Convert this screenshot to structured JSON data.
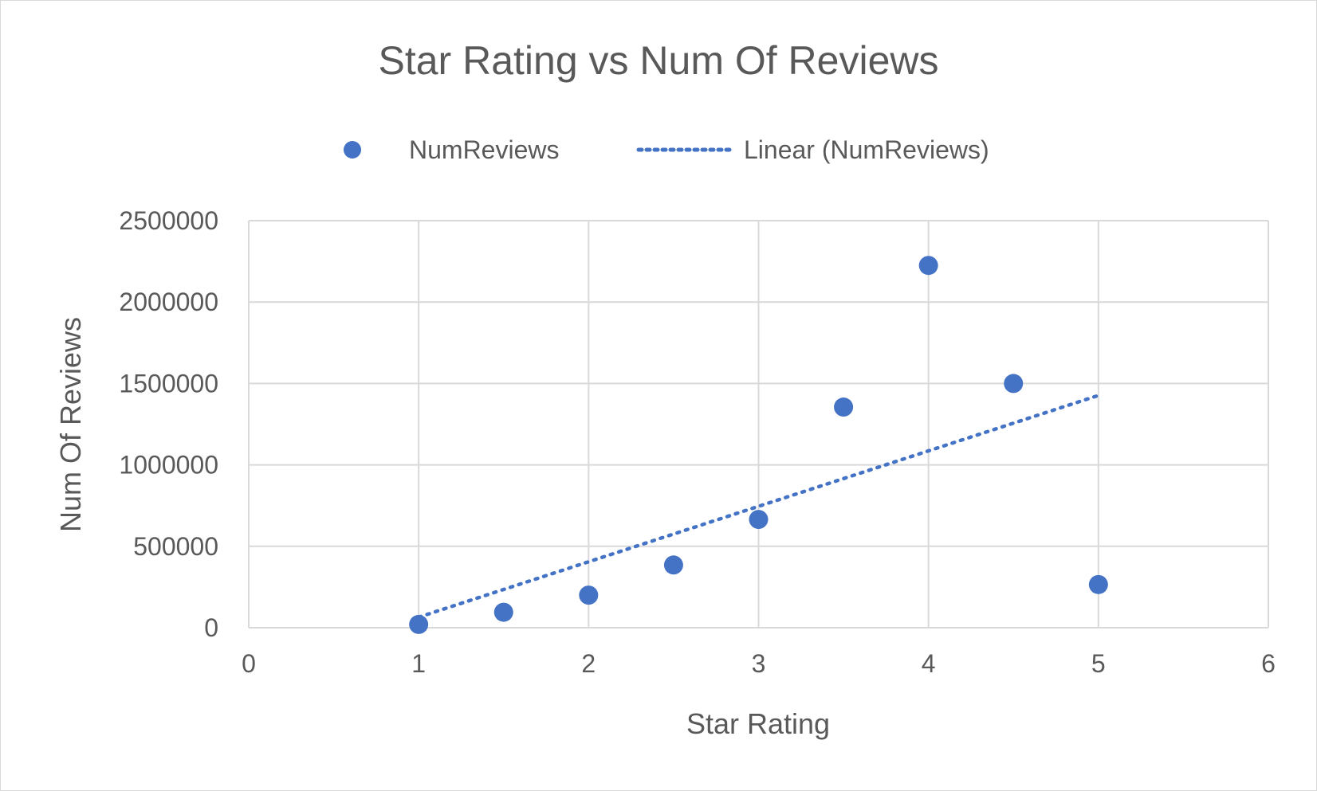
{
  "chart_data": {
    "type": "scatter",
    "title": "Star Rating vs Num Of Reviews",
    "xlabel": "Star Rating",
    "ylabel": "Num Of Reviews",
    "xlim": [
      0,
      6
    ],
    "ylim": [
      0,
      2500000
    ],
    "x_ticks": [
      "0",
      "1",
      "2",
      "3",
      "4",
      "5",
      "6"
    ],
    "y_ticks": [
      "0",
      "500000",
      "1000000",
      "1500000",
      "2000000",
      "2500000"
    ],
    "grid": true,
    "legend_position": "top",
    "series": [
      {
        "name": "NumReviews",
        "color": "#4472C4",
        "x": [
          1,
          1.5,
          2,
          2.5,
          3,
          3.5,
          4,
          4.5,
          5
        ],
        "y": [
          20000,
          95000,
          200000,
          385000,
          665000,
          1355000,
          2225000,
          1500000,
          265000
        ]
      }
    ],
    "trendline": {
      "name": "Linear (NumReviews)",
      "type": "linear",
      "color": "#4472C4",
      "style": "dotted",
      "x_range": [
        1,
        5
      ]
    }
  }
}
